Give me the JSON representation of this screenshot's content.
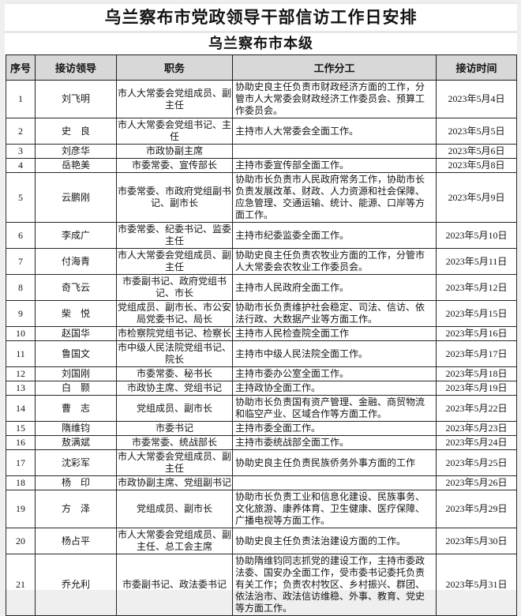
{
  "header": {
    "title": "乌兰察布市党政领导干部信访工作日安排",
    "subtitle": "乌兰察布市本级"
  },
  "colors": {
    "header_bg": "#d8d8d8",
    "border": "#262626",
    "text": "#141414",
    "page_bg": "#ffffff"
  },
  "table": {
    "columns": [
      "序号",
      "接访领导",
      "职务",
      "工作分工",
      "接访时间"
    ],
    "rows": [
      {
        "no": "1",
        "leader": "刘飞明",
        "position": "市人大常委会党组成员、副主任",
        "duty": "协助史良主任负责市财政经济方面的工作，分管市人大常委会财政经济工作委员会、预算工作委员会。",
        "date": "2023年5月4日"
      },
      {
        "no": "2",
        "leader": "史　良",
        "position": "市人大常委会党组书记、主任",
        "duty": "主持市人大常委会全面工作。",
        "date": "2023年5月5日"
      },
      {
        "no": "3",
        "leader": "刘彦华",
        "position": "市政协副主席",
        "duty": "",
        "date": "2023年5月6日"
      },
      {
        "no": "4",
        "leader": "岳艳美",
        "position": "市委常委、宣传部长",
        "duty": "主持市委宣传部全面工作。",
        "date": "2023年5月8日"
      },
      {
        "no": "5",
        "leader": "云鹏刚",
        "position": "市委常委、市政府党组副书记、副市长",
        "duty": "协助市长负责市人民政府常务工作，协助市长负责发展改革、财政、人力资源和社会保障、应急管理、交通运输、统计、能源、口岸等方面工作。",
        "date": "2023年5月9日"
      },
      {
        "no": "6",
        "leader": "李成广",
        "position": "市委常委、纪委书记、监委主任",
        "duty": "主持市纪委监委全面工作。",
        "date": "2023年5月10日"
      },
      {
        "no": "7",
        "leader": "付海青",
        "position": "市人大常委会党组成员、副主任",
        "duty": "协助史良主任负责农牧业方面的工作，分管市人大常委会农牧业工作委员会。",
        "date": "2023年5月11日"
      },
      {
        "no": "8",
        "leader": "奇飞云",
        "position": "市委副书记、政府党组书记、市长",
        "duty": "主持市人民政府全面工作。",
        "date": "2023年5月12日"
      },
      {
        "no": "9",
        "leader": "柴　悦",
        "position": "党组成员、副市长、市公安局党委书记、局长",
        "duty": "协助市长负责维护社会稳定、司法、信访、依法行政、大数据产业等方面工作。",
        "date": "2023年5月15日"
      },
      {
        "no": "10",
        "leader": "赵国华",
        "position": "市检察院党组书记、检察长",
        "duty": "主持市人民检查院全面工作",
        "date": "2023年5月16日"
      },
      {
        "no": "11",
        "leader": "鲁国文",
        "position": "市中级人民法院党组书记、院长",
        "duty": "主持市中级人民法院全面工作。",
        "date": "2023年5月17日"
      },
      {
        "no": "12",
        "leader": "刘国刚",
        "position": "市委常委、秘书长",
        "duty": "主持市委办公室全面工作。",
        "date": "2023年5月18日"
      },
      {
        "no": "13",
        "leader": "白　颢",
        "position": "市政协主席、党组书记",
        "duty": "主持政协全面工作。",
        "date": "2023年5月19日"
      },
      {
        "no": "14",
        "leader": "曹　志",
        "position": "党组成员、副市长",
        "duty": "协助市长负责国有资产管理、金融、商贸物流和临空产业、区域合作等方面工作。",
        "date": "2023年5月22日"
      },
      {
        "no": "15",
        "leader": "隋维钧",
        "position": "市委书记",
        "duty": "主持市委全面工作。",
        "date": "2023年5月23日"
      },
      {
        "no": "16",
        "leader": "敖满斌",
        "position": "市委常委、统战部长",
        "duty": "主持市委统战部全面工作。",
        "date": "2023年5月24日"
      },
      {
        "no": "17",
        "leader": "沈彩军",
        "position": "市人大常委会党组成员、副主任",
        "duty": "协助史良主任负责民族侨务外事方面的工作",
        "date": "2023年5月25日"
      },
      {
        "no": "18",
        "leader": "杨　印",
        "position": "市政协副主席、党组副书记",
        "duty": "",
        "date": "2023年5月26日"
      },
      {
        "no": "19",
        "leader": "方　泽",
        "position": "党组成员、副市长",
        "duty": "协助市长负责工业和信息化建设、民族事务、文化旅游、康养体育、卫生健康、医疗保障、广播电视等方面工作。",
        "date": "2023年5月29日"
      },
      {
        "no": "20",
        "leader": "杨占平",
        "position": "市人大常委会党组成员、副主任、总工会主席",
        "duty": "协助史良主任负责法治建设方面的工作。",
        "date": "2023年5月30日"
      },
      {
        "no": "21",
        "leader": "乔允利",
        "position": "市委副书记、政法委书记",
        "duty": "协助隋维钧同志抓党的建设工作，主持市委政法委、国安办全面工作，受市委书记委托负责有关工作；负责农村牧区、乡村振兴、群团、依法治市、政法信访维稳、外事、教育、党史等方面工作。",
        "date": "2023年5月31日"
      }
    ]
  }
}
